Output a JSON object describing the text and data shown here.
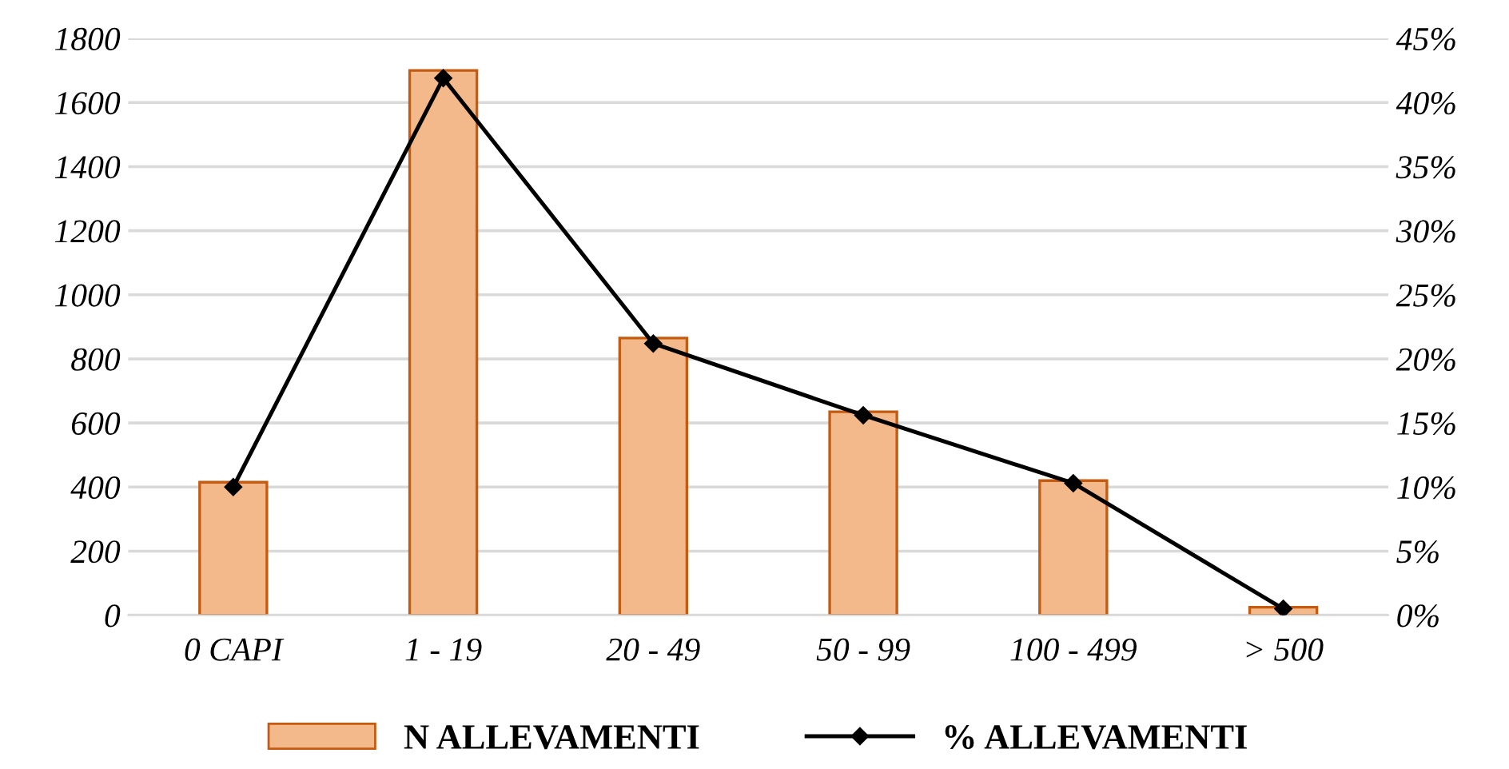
{
  "chart_data": {
    "type": "bar",
    "categories": [
      "0 CAPI",
      "1 - 19",
      "20 - 49",
      "50 - 99",
      "100 - 499",
      "> 500"
    ],
    "series": [
      {
        "name": "N ALLEVAMENTI",
        "color": "#f4b98a",
        "values": [
          415,
          1700,
          865,
          635,
          420,
          25
        ]
      },
      {
        "name": "% ALLEVAMENTI",
        "type": "line",
        "axis": "y2",
        "color": "#000000",
        "marker": "diamond",
        "values": [
          10.0,
          41.9,
          21.2,
          15.6,
          10.3,
          0.5
        ]
      }
    ],
    "ylim": [
      0,
      1800
    ],
    "yticks": [
      0,
      200,
      400,
      600,
      800,
      1000,
      1200,
      1400,
      1600,
      1800
    ],
    "y2lim": [
      0,
      45
    ],
    "y2ticks": [
      {
        "value": 0,
        "label": "0%"
      },
      {
        "value": 5,
        "label": "5%"
      },
      {
        "value": 10,
        "label": "10%"
      },
      {
        "value": 15,
        "label": "15%"
      },
      {
        "value": 20,
        "label": "20%"
      },
      {
        "value": 25,
        "label": "25%"
      },
      {
        "value": 30,
        "label": "30%"
      },
      {
        "value": 35,
        "label": "35%"
      },
      {
        "value": 40,
        "label": "40%"
      },
      {
        "value": 45,
        "label": "45%"
      }
    ],
    "grid": "y",
    "legend": "bottom"
  }
}
